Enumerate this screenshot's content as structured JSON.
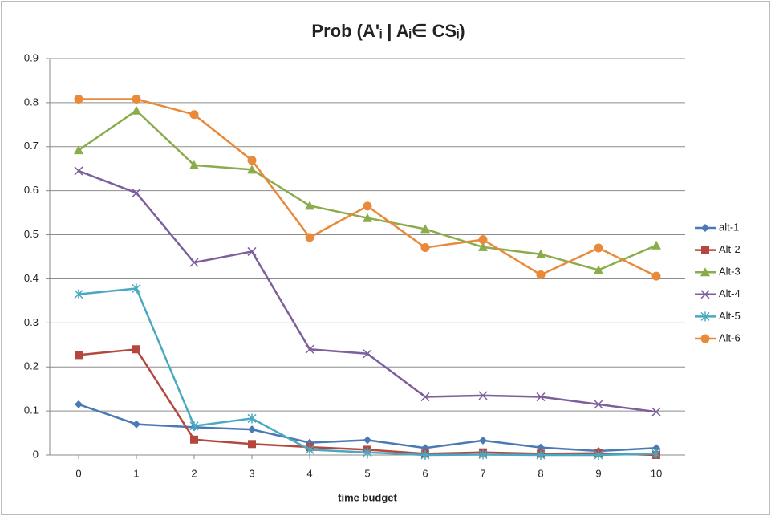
{
  "chart_data": {
    "type": "line",
    "title": "Prob (A'ᵢ | Aᵢ∈ CSᵢ)",
    "x_label": "time budget",
    "x": [
      0,
      1,
      2,
      3,
      4,
      5,
      6,
      7,
      8,
      9,
      10
    ],
    "xlim": [
      -0.5,
      10.5
    ],
    "xticks": [
      0,
      1,
      2,
      3,
      4,
      5,
      6,
      7,
      8,
      9,
      10
    ],
    "ylim": [
      0,
      0.9
    ],
    "yticks": [
      0,
      0.1,
      0.2,
      0.3,
      0.4,
      0.5,
      0.6,
      0.7,
      0.8,
      0.9
    ],
    "grid": true,
    "legend": "right",
    "series": [
      {
        "name": "alt-1",
        "color": "#4a7ab5",
        "marker": "diamond",
        "values": [
          0.115,
          0.07,
          0.063,
          0.058,
          0.028,
          0.034,
          0.016,
          0.033,
          0.017,
          0.009,
          0.016
        ]
      },
      {
        "name": "Alt-2",
        "color": "#b5473f",
        "marker": "square",
        "values": [
          0.227,
          0.24,
          0.035,
          0.025,
          0.018,
          0.012,
          0.003,
          0.006,
          0.003,
          0.004,
          0.0
        ]
      },
      {
        "name": "Alt-3",
        "color": "#8aac4a",
        "marker": "triangle",
        "values": [
          0.692,
          0.782,
          0.658,
          0.648,
          0.566,
          0.538,
          0.513,
          0.472,
          0.456,
          0.42,
          0.476
        ]
      },
      {
        "name": "Alt-4",
        "color": "#7d5f9c",
        "marker": "x",
        "values": [
          0.645,
          0.595,
          0.437,
          0.462,
          0.24,
          0.23,
          0.132,
          0.135,
          0.132,
          0.115,
          0.098
        ]
      },
      {
        "name": "Alt-5",
        "color": "#4aa9c0",
        "marker": "star",
        "values": [
          0.365,
          0.378,
          0.066,
          0.083,
          0.012,
          0.006,
          0.0,
          0.001,
          0.0,
          0.0,
          0.003
        ]
      },
      {
        "name": "Alt-6",
        "color": "#e9893a",
        "marker": "circle",
        "values": [
          0.808,
          0.808,
          0.773,
          0.669,
          0.494,
          0.565,
          0.471,
          0.489,
          0.409,
          0.47,
          0.406
        ]
      }
    ]
  }
}
